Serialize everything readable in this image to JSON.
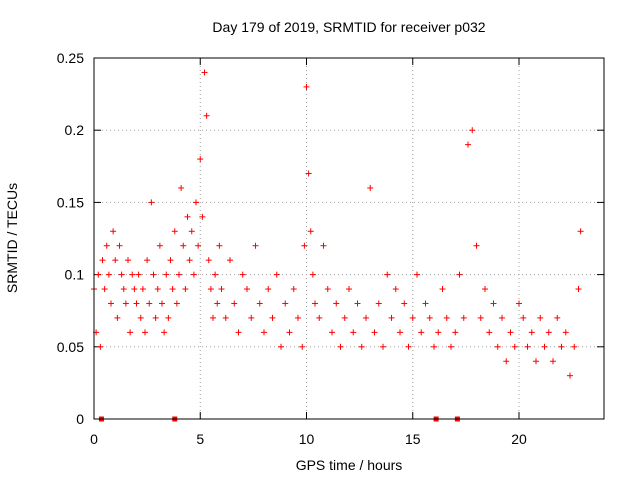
{
  "chart_data": {
    "type": "scatter",
    "title": "Day 179 of 2019, SRMTID for receiver p032",
    "xlabel": "GPS time / hours",
    "ylabel": "SRMTID / TECUs",
    "xlim": [
      0,
      24
    ],
    "ylim": [
      0,
      0.25
    ],
    "xticks": [
      0,
      5,
      10,
      15,
      20
    ],
    "xtick_labels": [
      "0",
      "5",
      "10",
      "15",
      "20"
    ],
    "yticks": [
      0,
      0.05,
      0.1,
      0.15,
      0.2,
      0.25
    ],
    "ytick_labels": [
      "0",
      "0.05",
      "0.1",
      "0.15",
      "0.2",
      "0.25"
    ],
    "grid": true,
    "marker": "+",
    "color": "#ff0000",
    "baseline_markers_x": [
      0.35,
      3.8,
      16.1,
      17.1
    ],
    "series": [
      {
        "name": "SRMTID",
        "x": [
          0.0,
          0.1,
          0.2,
          0.3,
          0.4,
          0.5,
          0.6,
          0.7,
          0.8,
          0.9,
          1.0,
          1.1,
          1.2,
          1.3,
          1.4,
          1.5,
          1.6,
          1.7,
          1.8,
          1.9,
          2.0,
          2.1,
          2.2,
          2.3,
          2.4,
          2.5,
          2.6,
          2.7,
          2.8,
          2.9,
          3.0,
          3.1,
          3.2,
          3.3,
          3.4,
          3.5,
          3.6,
          3.7,
          3.8,
          3.9,
          4.0,
          4.1,
          4.2,
          4.3,
          4.4,
          4.5,
          4.6,
          4.7,
          4.8,
          4.9,
          5.0,
          5.1,
          5.2,
          5.3,
          5.4,
          5.5,
          5.6,
          5.7,
          5.8,
          5.9,
          6.0,
          6.2,
          6.4,
          6.6,
          6.8,
          7.0,
          7.2,
          7.4,
          7.6,
          7.8,
          8.0,
          8.2,
          8.4,
          8.6,
          8.8,
          9.0,
          9.2,
          9.4,
          9.6,
          9.8,
          9.9,
          10.0,
          10.1,
          10.2,
          10.3,
          10.4,
          10.6,
          10.8,
          11.0,
          11.2,
          11.4,
          11.6,
          11.8,
          12.0,
          12.2,
          12.4,
          12.6,
          12.8,
          13.0,
          13.2,
          13.4,
          13.6,
          13.8,
          14.0,
          14.2,
          14.4,
          14.6,
          14.8,
          15.0,
          15.2,
          15.4,
          15.6,
          15.8,
          16.0,
          16.2,
          16.4,
          16.6,
          16.8,
          17.0,
          17.2,
          17.4,
          17.6,
          17.8,
          18.0,
          18.2,
          18.4,
          18.6,
          18.8,
          19.0,
          19.2,
          19.4,
          19.6,
          19.8,
          20.0,
          20.2,
          20.4,
          20.6,
          20.8,
          21.0,
          21.2,
          21.4,
          21.6,
          21.8,
          22.0,
          22.2,
          22.4,
          22.6,
          22.8,
          22.9
        ],
        "y": [
          0.09,
          0.06,
          0.1,
          0.05,
          0.11,
          0.09,
          0.12,
          0.1,
          0.08,
          0.13,
          0.11,
          0.07,
          0.12,
          0.1,
          0.09,
          0.08,
          0.11,
          0.06,
          0.1,
          0.09,
          0.08,
          0.1,
          0.07,
          0.09,
          0.06,
          0.11,
          0.08,
          0.15,
          0.1,
          0.07,
          0.09,
          0.12,
          0.08,
          0.06,
          0.1,
          0.07,
          0.11,
          0.09,
          0.13,
          0.08,
          0.1,
          0.16,
          0.12,
          0.09,
          0.14,
          0.11,
          0.13,
          0.1,
          0.15,
          0.12,
          0.18,
          0.14,
          0.24,
          0.21,
          0.11,
          0.09,
          0.07,
          0.1,
          0.08,
          0.12,
          0.09,
          0.07,
          0.11,
          0.08,
          0.06,
          0.1,
          0.09,
          0.07,
          0.12,
          0.08,
          0.06,
          0.09,
          0.07,
          0.1,
          0.05,
          0.08,
          0.06,
          0.09,
          0.07,
          0.05,
          0.12,
          0.23,
          0.17,
          0.13,
          0.1,
          0.08,
          0.07,
          0.12,
          0.09,
          0.06,
          0.08,
          0.05,
          0.07,
          0.09,
          0.06,
          0.08,
          0.05,
          0.07,
          0.16,
          0.06,
          0.08,
          0.05,
          0.1,
          0.07,
          0.09,
          0.06,
          0.08,
          0.05,
          0.07,
          0.1,
          0.06,
          0.08,
          0.07,
          0.05,
          0.06,
          0.09,
          0.07,
          0.05,
          0.06,
          0.1,
          0.07,
          0.19,
          0.2,
          0.12,
          0.07,
          0.09,
          0.06,
          0.08,
          0.05,
          0.07,
          0.04,
          0.06,
          0.05,
          0.08,
          0.07,
          0.05,
          0.06,
          0.04,
          0.07,
          0.05,
          0.06,
          0.04,
          0.07,
          0.05,
          0.06,
          0.03,
          0.05,
          0.09,
          0.13
        ]
      }
    ]
  }
}
